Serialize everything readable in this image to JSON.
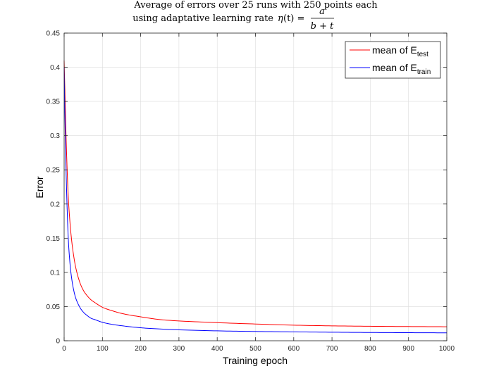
{
  "chart_data": {
    "type": "line",
    "title": {
      "line1": "Average of errors over 25 runs with 250 points each",
      "line2_prefix": "using adaptative learning rate",
      "formula": {
        "eta": "η",
        "arg": "(t) =",
        "numerator": "a",
        "denominator": "b + t"
      }
    },
    "xlabel": "Training epoch",
    "ylabel": "Error",
    "xlim": [
      0,
      1000
    ],
    "ylim": [
      0,
      0.45
    ],
    "xticks": [
      0,
      100,
      200,
      300,
      400,
      500,
      600,
      700,
      800,
      900,
      1000
    ],
    "yticks": [
      0,
      0.05,
      0.1,
      0.15,
      0.2,
      0.25,
      0.3,
      0.35,
      0.4,
      0.45
    ],
    "xtick_labels": [
      "0",
      "100",
      "200",
      "300",
      "400",
      "500",
      "600",
      "700",
      "800",
      "900",
      "1000"
    ],
    "ytick_labels": [
      "0",
      "0.05",
      "0.1",
      "0.15",
      "0.2",
      "0.25",
      "0.3",
      "0.35",
      "0.4",
      "0.45"
    ],
    "grid": true,
    "legend_position": "top-right",
    "series": [
      {
        "name": "mean of E",
        "name_sub": "test",
        "color": "#ff0000",
        "x": [
          0,
          2,
          5,
          10,
          15,
          20,
          25,
          30,
          40,
          50,
          60,
          70,
          80,
          100,
          125,
          150,
          200,
          250,
          300,
          400,
          500,
          600,
          700,
          800,
          900,
          1000
        ],
        "y": [
          0.41,
          0.365,
          0.3,
          0.22,
          0.175,
          0.145,
          0.124,
          0.108,
          0.087,
          0.074,
          0.066,
          0.06,
          0.056,
          0.049,
          0.044,
          0.04,
          0.035,
          0.031,
          0.029,
          0.0265,
          0.0245,
          0.0228,
          0.0218,
          0.0212,
          0.0208,
          0.0205
        ]
      },
      {
        "name": "mean of E",
        "name_sub": "train",
        "color": "#0000ff",
        "x": [
          0,
          2,
          5,
          10,
          15,
          20,
          25,
          30,
          40,
          50,
          60,
          70,
          80,
          100,
          125,
          150,
          200,
          250,
          300,
          400,
          500,
          600,
          700,
          800,
          900,
          1000
        ],
        "y": [
          0.4,
          0.33,
          0.25,
          0.16,
          0.115,
          0.09,
          0.074,
          0.063,
          0.05,
          0.042,
          0.037,
          0.033,
          0.031,
          0.027,
          0.024,
          0.022,
          0.019,
          0.0172,
          0.016,
          0.0145,
          0.0136,
          0.013,
          0.0125,
          0.0121,
          0.0118,
          0.0116
        ]
      }
    ]
  }
}
